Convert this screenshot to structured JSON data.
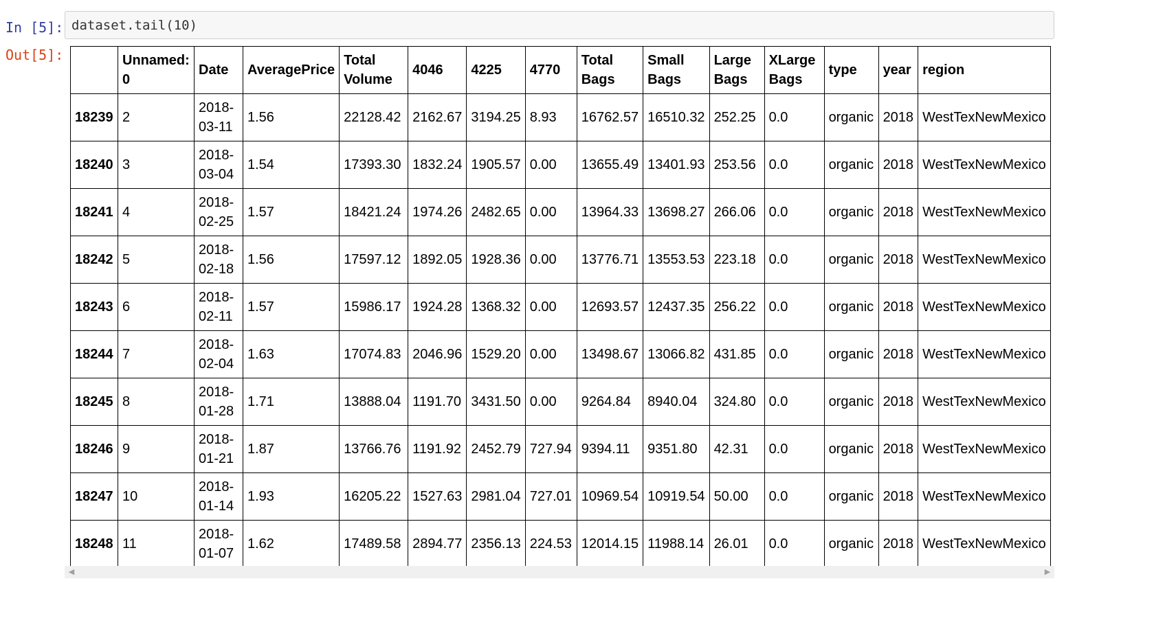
{
  "cell": {
    "in_prompt": "In [5]:",
    "out_prompt": "Out[5]:",
    "code": "dataset.tail(10)"
  },
  "table": {
    "columns": [
      {
        "line1": "",
        "line2": ""
      },
      {
        "line1": "Unnamed:",
        "line2": "0"
      },
      {
        "line1": "Date",
        "line2": ""
      },
      {
        "line1": "AveragePrice",
        "line2": ""
      },
      {
        "line1": "Total",
        "line2": "Volume"
      },
      {
        "line1": "4046",
        "line2": ""
      },
      {
        "line1": "4225",
        "line2": ""
      },
      {
        "line1": "4770",
        "line2": ""
      },
      {
        "line1": "Total",
        "line2": "Bags"
      },
      {
        "line1": "Small",
        "line2": "Bags"
      },
      {
        "line1": "Large",
        "line2": "Bags"
      },
      {
        "line1": "XLarge",
        "line2": "Bags"
      },
      {
        "line1": "type",
        "line2": ""
      },
      {
        "line1": "year",
        "line2": ""
      },
      {
        "line1": "region",
        "line2": ""
      }
    ],
    "rows": [
      {
        "index": "18239",
        "unnamed": "2",
        "date1": "2018-",
        "date2": "03-11",
        "avg": "1.56",
        "total_volume": "22128.42",
        "c4046": "2162.67",
        "c4225": "3194.25",
        "c4770": "8.93",
        "total_bags": "16762.57",
        "small_bags": "16510.32",
        "large_bags": "252.25",
        "xlarge_bags": "0.0",
        "type": "organic",
        "year": "2018",
        "region": "WestTexNewMexico"
      },
      {
        "index": "18240",
        "unnamed": "3",
        "date1": "2018-",
        "date2": "03-04",
        "avg": "1.54",
        "total_volume": "17393.30",
        "c4046": "1832.24",
        "c4225": "1905.57",
        "c4770": "0.00",
        "total_bags": "13655.49",
        "small_bags": "13401.93",
        "large_bags": "253.56",
        "xlarge_bags": "0.0",
        "type": "organic",
        "year": "2018",
        "region": "WestTexNewMexico"
      },
      {
        "index": "18241",
        "unnamed": "4",
        "date1": "2018-",
        "date2": "02-25",
        "avg": "1.57",
        "total_volume": "18421.24",
        "c4046": "1974.26",
        "c4225": "2482.65",
        "c4770": "0.00",
        "total_bags": "13964.33",
        "small_bags": "13698.27",
        "large_bags": "266.06",
        "xlarge_bags": "0.0",
        "type": "organic",
        "year": "2018",
        "region": "WestTexNewMexico"
      },
      {
        "index": "18242",
        "unnamed": "5",
        "date1": "2018-",
        "date2": "02-18",
        "avg": "1.56",
        "total_volume": "17597.12",
        "c4046": "1892.05",
        "c4225": "1928.36",
        "c4770": "0.00",
        "total_bags": "13776.71",
        "small_bags": "13553.53",
        "large_bags": "223.18",
        "xlarge_bags": "0.0",
        "type": "organic",
        "year": "2018",
        "region": "WestTexNewMexico"
      },
      {
        "index": "18243",
        "unnamed": "6",
        "date1": "2018-",
        "date2": "02-11",
        "avg": "1.57",
        "total_volume": "15986.17",
        "c4046": "1924.28",
        "c4225": "1368.32",
        "c4770": "0.00",
        "total_bags": "12693.57",
        "small_bags": "12437.35",
        "large_bags": "256.22",
        "xlarge_bags": "0.0",
        "type": "organic",
        "year": "2018",
        "region": "WestTexNewMexico"
      },
      {
        "index": "18244",
        "unnamed": "7",
        "date1": "2018-",
        "date2": "02-04",
        "avg": "1.63",
        "total_volume": "17074.83",
        "c4046": "2046.96",
        "c4225": "1529.20",
        "c4770": "0.00",
        "total_bags": "13498.67",
        "small_bags": "13066.82",
        "large_bags": "431.85",
        "xlarge_bags": "0.0",
        "type": "organic",
        "year": "2018",
        "region": "WestTexNewMexico"
      },
      {
        "index": "18245",
        "unnamed": "8",
        "date1": "2018-",
        "date2": "01-28",
        "avg": "1.71",
        "total_volume": "13888.04",
        "c4046": "1191.70",
        "c4225": "3431.50",
        "c4770": "0.00",
        "total_bags": "9264.84",
        "small_bags": "8940.04",
        "large_bags": "324.80",
        "xlarge_bags": "0.0",
        "type": "organic",
        "year": "2018",
        "region": "WestTexNewMexico"
      },
      {
        "index": "18246",
        "unnamed": "9",
        "date1": "2018-",
        "date2": "01-21",
        "avg": "1.87",
        "total_volume": "13766.76",
        "c4046": "1191.92",
        "c4225": "2452.79",
        "c4770": "727.94",
        "total_bags": "9394.11",
        "small_bags": "9351.80",
        "large_bags": "42.31",
        "xlarge_bags": "0.0",
        "type": "organic",
        "year": "2018",
        "region": "WestTexNewMexico"
      },
      {
        "index": "18247",
        "unnamed": "10",
        "date1": "2018-",
        "date2": "01-14",
        "avg": "1.93",
        "total_volume": "16205.22",
        "c4046": "1527.63",
        "c4225": "2981.04",
        "c4770": "727.01",
        "total_bags": "10969.54",
        "small_bags": "10919.54",
        "large_bags": "50.00",
        "xlarge_bags": "0.0",
        "type": "organic",
        "year": "2018",
        "region": "WestTexNewMexico"
      },
      {
        "index": "18248",
        "unnamed": "11",
        "date1": "2018-",
        "date2": "01-07",
        "avg": "1.62",
        "total_volume": "17489.58",
        "c4046": "2894.77",
        "c4225": "2356.13",
        "c4770": "224.53",
        "total_bags": "12014.15",
        "small_bags": "11988.14",
        "large_bags": "26.01",
        "xlarge_bags": "0.0",
        "type": "organic",
        "year": "2018",
        "region": "WestTexNewMexico"
      }
    ]
  },
  "icons": {
    "scroll_left": "scroll-left-arrow-icon",
    "scroll_right": "scroll-right-arrow-icon"
  }
}
